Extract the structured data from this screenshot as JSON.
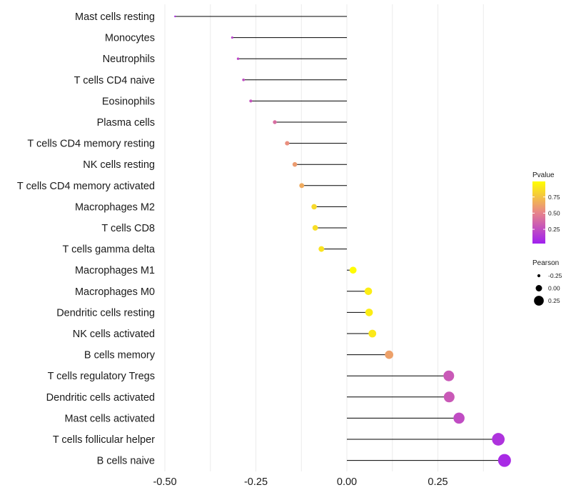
{
  "chart_data": {
    "type": "lollipop",
    "title": "",
    "xlabel": "",
    "ylabel": "",
    "xlim": [
      -0.5,
      0.45
    ],
    "x_ticks": [
      {
        "value": -0.5,
        "label": "-0.50"
      },
      {
        "value": -0.25,
        "label": "-0.25"
      },
      {
        "value": 0.0,
        "label": "0.00"
      },
      {
        "value": 0.25,
        "label": "0.25"
      }
    ],
    "grid": true,
    "legend_position": "right",
    "categories": [
      "Mast cells resting",
      "Monocytes",
      "Neutrophils",
      "T cells CD4 naive",
      "Eosinophils",
      "Plasma cells",
      "T cells CD4 memory resting",
      "NK cells resting",
      "T cells CD4 memory activated",
      "Macrophages M2",
      "T cells CD8",
      "T cells gamma delta",
      "Macrophages M1",
      "Macrophages M0",
      "Dendritic cells resting",
      "NK cells activated",
      "B cells memory",
      "T cells regulatory  Tregs ",
      "Dendritic cells activated",
      "Mast cells activated",
      "T cells follicular helper",
      "B cells naive"
    ],
    "pearson": [
      -0.472,
      -0.315,
      -0.299,
      -0.284,
      -0.264,
      -0.198,
      -0.164,
      -0.143,
      -0.124,
      -0.09,
      -0.087,
      -0.07,
      0.017,
      0.059,
      0.061,
      0.07,
      0.116,
      0.28,
      0.281,
      0.308,
      0.416,
      0.433
    ],
    "pvalue": [
      0.1,
      0.2,
      0.22,
      0.24,
      0.27,
      0.4,
      0.55,
      0.6,
      0.66,
      0.84,
      0.86,
      0.88,
      0.98,
      0.92,
      0.92,
      0.9,
      0.62,
      0.3,
      0.3,
      0.24,
      0.12,
      0.08
    ],
    "color_legend": {
      "title": "Pvalue",
      "low_color": "#a020f0",
      "high_color": "#ffff00",
      "range": [
        0.03,
        0.99
      ],
      "ticks": [
        {
          "value": 0.25,
          "label": "0.25"
        },
        {
          "value": 0.5,
          "label": "0.50"
        },
        {
          "value": 0.75,
          "label": "0.75"
        }
      ]
    },
    "size_legend": {
      "title": "Pearson",
      "entries": [
        {
          "value": -0.25,
          "label": "-0.25"
        },
        {
          "value": 0.0,
          "label": "0.00"
        },
        {
          "value": 0.25,
          "label": "0.25"
        }
      ]
    }
  }
}
